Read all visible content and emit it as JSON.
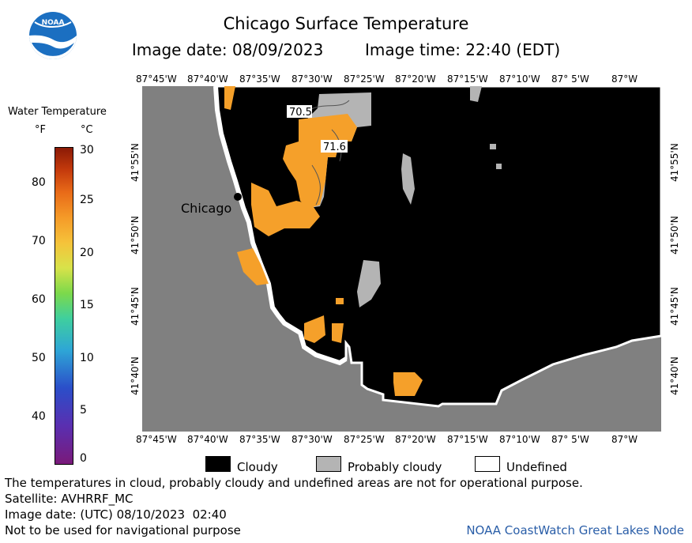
{
  "title": "Chicago Surface Temperature",
  "image_date": "Image date: 08/09/2023",
  "image_time": "Image time: 22:40 (EDT)",
  "logo": {
    "text": "NOAA"
  },
  "colorbar": {
    "title": "Water Temperature",
    "unit_f": "°F",
    "unit_c": "°C",
    "f_ticks": [
      "80",
      "70",
      "60",
      "50",
      "40"
    ],
    "c_ticks": [
      "30",
      "25",
      "20",
      "15",
      "10",
      "5",
      "0"
    ]
  },
  "axes": {
    "lon_labels": [
      "87°45'W",
      "87°40'W",
      "87°35'W",
      "87°30'W",
      "87°25'W",
      "87°20'W",
      "87°15'W",
      "87°10'W",
      "87° 5'W",
      "87°W"
    ],
    "lat_labels": [
      "41°55'N",
      "41°50'N",
      "41°45'N",
      "41°40'N"
    ]
  },
  "map": {
    "city_label": "Chicago",
    "temp_labels": [
      "70.5",
      "71.6"
    ],
    "colors": {
      "land": "#808080",
      "cloud": "#000000",
      "probably_cloudy": "#b4b4b4",
      "water_warm": "#f5a02a",
      "undefined": "#ffffff"
    }
  },
  "legend": {
    "cloudy": "Cloudy",
    "probably_cloudy": "Probably cloudy",
    "undefined": "Undefined"
  },
  "footer": {
    "disclaimer": "The temperatures in cloud, probably cloudy and undefined areas are not for operational purpose.",
    "satellite": "Satellite: AVHRRF_MC",
    "utc_date": "Image date: (UTC) 08/10/2023  02:40",
    "nav_warning": "Not to be used for navigational purpose",
    "credit": "NOAA CoastWatch Great Lakes Node"
  }
}
